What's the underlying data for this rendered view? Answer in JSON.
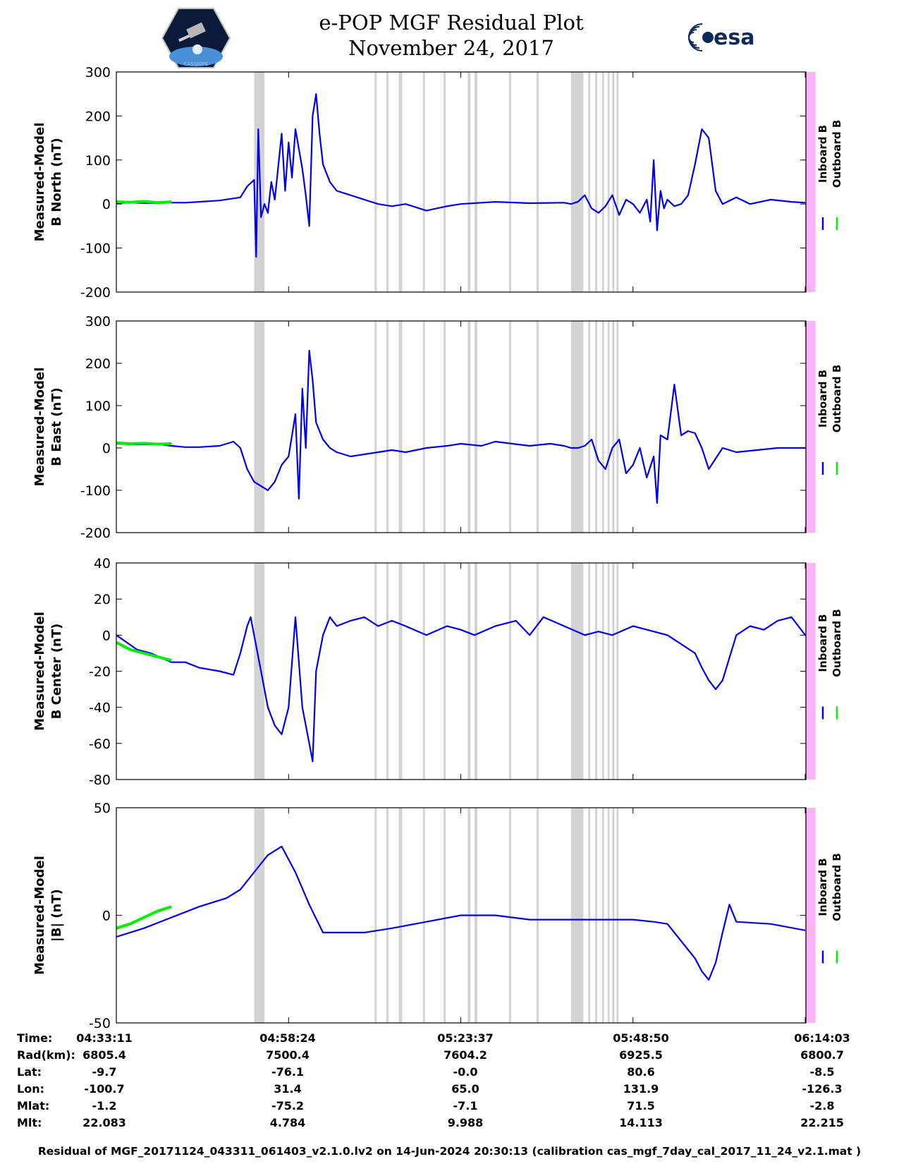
{
  "header": {
    "title_line1": "e-POP MGF Residual Plot",
    "title_line2": "November 24, 2017",
    "left_logo": "cassiope-logo",
    "left_logo_text": "CASSIOPE",
    "right_logo": "esa-logo",
    "right_logo_text": "esa"
  },
  "colors": {
    "inboard": "#0000ee",
    "outboard": "#00ee00",
    "gap": "#d3d3d3",
    "end_band": "#f8b4f8"
  },
  "legend": {
    "inboard": "Inboard B",
    "outboard": "Outboard B"
  },
  "chart_data": [
    {
      "type": "line",
      "ylabel_line1": "Measured-Model",
      "ylabel_line2": "B North (nT)",
      "ylim": [
        -200,
        300
      ],
      "yticks": [
        300,
        200,
        100,
        0,
        -100,
        -200
      ],
      "xlim": [
        0,
        100
      ],
      "grid": false,
      "series": [
        {
          "name": "Inboard B",
          "x": [
            0,
            2,
            5,
            8,
            10,
            12,
            15,
            18,
            19,
            20,
            20.3,
            20.6,
            21,
            21.5,
            22,
            22.5,
            23,
            24,
            24.5,
            25,
            25.5,
            26,
            27,
            27.5,
            28,
            28.5,
            29,
            29.5,
            30,
            31,
            32,
            34,
            36,
            38,
            40,
            42,
            45,
            48,
            50,
            55,
            60,
            65,
            66,
            67,
            68,
            69,
            70,
            71,
            72,
            73,
            74,
            75,
            76,
            77,
            77.5,
            78,
            78.5,
            79,
            79.5,
            80,
            81,
            82,
            83,
            84,
            85,
            86,
            87,
            88,
            90,
            92,
            95,
            98,
            100
          ],
          "y": [
            2,
            3,
            2,
            3,
            3,
            5,
            8,
            15,
            40,
            55,
            -120,
            170,
            -30,
            0,
            -20,
            50,
            10,
            160,
            30,
            140,
            60,
            170,
            80,
            20,
            -50,
            200,
            250,
            160,
            90,
            50,
            30,
            20,
            10,
            0,
            -5,
            0,
            -15,
            -5,
            0,
            5,
            2,
            3,
            0,
            5,
            20,
            -10,
            -20,
            -5,
            20,
            -25,
            10,
            0,
            -20,
            10,
            -40,
            100,
            -60,
            30,
            -10,
            10,
            -5,
            0,
            20,
            90,
            170,
            150,
            30,
            0,
            15,
            0,
            10,
            5,
            3
          ]
        },
        {
          "name": "Outboard B",
          "x": [
            0,
            2,
            4,
            6,
            8
          ],
          "y": [
            5,
            4,
            6,
            3,
            5
          ]
        }
      ]
    },
    {
      "type": "line",
      "ylabel_line1": "Measured-Model",
      "ylabel_line2": "B East (nT)",
      "ylim": [
        -200,
        300
      ],
      "yticks": [
        300,
        200,
        100,
        0,
        -100,
        -200
      ],
      "xlim": [
        0,
        100
      ],
      "grid": false,
      "series": [
        {
          "name": "Inboard B",
          "x": [
            0,
            3,
            6,
            8,
            10,
            12,
            15,
            17,
            18,
            19,
            20,
            21,
            22,
            23,
            24,
            25,
            26,
            26.5,
            27,
            27.5,
            28,
            28.5,
            29,
            30,
            31,
            32,
            34,
            36,
            38,
            40,
            42,
            45,
            48,
            50,
            53,
            55,
            60,
            63,
            65,
            66,
            67,
            68,
            69,
            70,
            71,
            72,
            73,
            74,
            75,
            76,
            77,
            78,
            78.5,
            79,
            80,
            81,
            82,
            83,
            84,
            85,
            86,
            88,
            90,
            93,
            96,
            98,
            100
          ],
          "y": [
            10,
            8,
            9,
            5,
            2,
            2,
            5,
            15,
            0,
            -50,
            -80,
            -90,
            -100,
            -80,
            -40,
            -20,
            80,
            -120,
            140,
            0,
            230,
            160,
            60,
            20,
            0,
            -10,
            -20,
            -15,
            -10,
            -5,
            -10,
            0,
            5,
            10,
            5,
            15,
            5,
            10,
            5,
            0,
            0,
            5,
            20,
            -30,
            -50,
            0,
            20,
            -60,
            -40,
            0,
            -70,
            -20,
            -130,
            30,
            20,
            150,
            30,
            40,
            35,
            0,
            -50,
            0,
            -10,
            -5,
            0,
            0,
            0
          ]
        },
        {
          "name": "Outboard B",
          "x": [
            0,
            2,
            4,
            6,
            8
          ],
          "y": [
            12,
            10,
            11,
            9,
            10
          ]
        }
      ]
    },
    {
      "type": "line",
      "ylabel_line1": "Measured-Model",
      "ylabel_line2": "B Center (nT)",
      "ylim": [
        -80,
        40
      ],
      "yticks": [
        40,
        20,
        0,
        -20,
        -40,
        -60,
        -80
      ],
      "xlim": [
        0,
        100
      ],
      "grid": false,
      "series": [
        {
          "name": "Inboard B",
          "x": [
            0,
            3,
            5,
            8,
            10,
            12,
            15,
            17,
            18,
            19,
            19.5,
            20,
            21,
            22,
            23,
            24,
            25,
            26,
            27,
            28,
            28.5,
            29,
            30,
            31,
            32,
            34,
            36,
            38,
            40,
            42,
            45,
            48,
            50,
            52,
            55,
            58,
            60,
            62,
            65,
            68,
            70,
            72,
            75,
            78,
            80,
            82,
            84,
            85,
            86,
            87,
            88,
            90,
            92,
            94,
            96,
            98,
            100
          ],
          "y": [
            0,
            -8,
            -10,
            -15,
            -15,
            -18,
            -20,
            -22,
            -10,
            5,
            10,
            0,
            -20,
            -40,
            -50,
            -55,
            -40,
            10,
            -40,
            -60,
            -70,
            -20,
            0,
            10,
            5,
            8,
            10,
            5,
            8,
            5,
            0,
            5,
            3,
            0,
            5,
            8,
            0,
            10,
            5,
            0,
            2,
            0,
            5,
            2,
            0,
            -5,
            -10,
            -18,
            -25,
            -30,
            -25,
            0,
            5,
            3,
            8,
            10,
            0
          ]
        },
        {
          "name": "Outboard B",
          "x": [
            0,
            2,
            4,
            6,
            8
          ],
          "y": [
            -4,
            -8,
            -10,
            -12,
            -14
          ]
        }
      ]
    },
    {
      "type": "line",
      "ylabel_line1": "Measured-Model",
      "ylabel_line2": "|B| (nT)",
      "ylim": [
        -50,
        50
      ],
      "yticks": [
        50,
        0,
        -50
      ],
      "xlim": [
        0,
        100
      ],
      "grid": false,
      "series": [
        {
          "name": "Inboard B",
          "x": [
            0,
            4,
            8,
            12,
            16,
            18,
            20,
            22,
            24,
            26,
            28,
            30,
            32,
            34,
            36,
            40,
            45,
            50,
            55,
            60,
            65,
            70,
            75,
            78,
            80,
            82,
            84,
            85,
            86,
            87,
            88,
            89,
            90,
            95,
            100
          ],
          "y": [
            -10,
            -6,
            -1,
            4,
            8,
            12,
            20,
            28,
            32,
            20,
            5,
            -8,
            -8,
            -8,
            -8,
            -6,
            -3,
            0,
            0,
            -2,
            -2,
            -2,
            -2,
            -3,
            -4,
            -12,
            -20,
            -26,
            -30,
            -22,
            -8,
            5,
            -3,
            -4,
            -7
          ]
        },
        {
          "name": "Outboard B",
          "x": [
            0,
            2,
            4,
            6,
            8
          ],
          "y": [
            -6,
            -4,
            -1,
            2,
            4
          ]
        }
      ]
    }
  ],
  "gap_bands_pct": [
    [
      20.0,
      21.5
    ],
    [
      37.5,
      37.8
    ],
    [
      39.2,
      39.5
    ],
    [
      41.0,
      41.5
    ],
    [
      44.5,
      44.8
    ],
    [
      47.5,
      47.8
    ],
    [
      51.0,
      51.4
    ],
    [
      52.0,
      52.4
    ],
    [
      57.0,
      57.3
    ],
    [
      61.0,
      61.3
    ],
    [
      66.0,
      67.8
    ],
    [
      68.5,
      68.8
    ],
    [
      69.5,
      69.8
    ],
    [
      70.5,
      70.8
    ],
    [
      71.3,
      71.6
    ],
    [
      72.0,
      72.3
    ],
    [
      72.6,
      72.9
    ]
  ],
  "end_band_pct": [
    100.0,
    101.5
  ],
  "xticks": [
    "04:33:11",
    "04:58:24",
    "05:23:37",
    "05:48:50",
    "06:14:03"
  ],
  "info": {
    "labels": [
      "Time:",
      "Rad(km):",
      "Lat:",
      "Lon:",
      "Mlat:",
      "Mlt:"
    ],
    "columns": [
      [
        "04:33:11",
        "6805.4",
        "-9.7",
        "-100.7",
        "-1.2",
        "22.083"
      ],
      [
        "04:58:24",
        "7500.4",
        "-76.1",
        "31.4",
        "-75.2",
        "4.784"
      ],
      [
        "05:23:37",
        "7604.2",
        "-0.0",
        "65.0",
        "-7.1",
        "9.988"
      ],
      [
        "05:48:50",
        "6925.5",
        "80.6",
        "131.9",
        "71.5",
        "14.113"
      ],
      [
        "06:14:03",
        "6800.7",
        "-8.5",
        "-126.3",
        "-2.8",
        "22.215"
      ]
    ]
  },
  "footer": "Residual of MGF_20171124_043311_061403_v2.1.0.lv2 on 14-Jun-2024 20:30:13 (calibration cas_mgf_7day_cal_2017_11_24_v2.1.mat )"
}
